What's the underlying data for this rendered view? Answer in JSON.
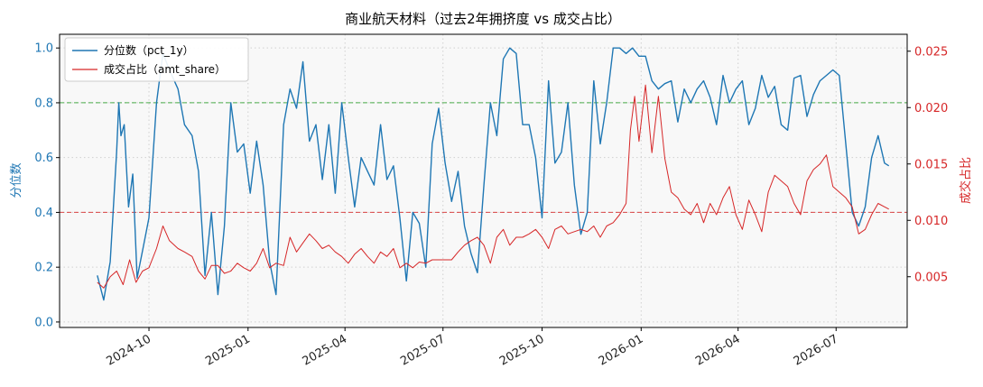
{
  "chart_data": {
    "type": "line",
    "title": "商业航天材料（过去2年拥挤度 vs 成交占比）",
    "x_ticks": [
      "2024-10",
      "2025-01",
      "2025-04",
      "2025-07",
      "2025-10",
      "2026-01",
      "2026-04",
      "2026-07"
    ],
    "y_left": {
      "label": "分位数",
      "ticks": [
        "0.0",
        "0.2",
        "0.4",
        "0.6",
        "0.8",
        "1.0"
      ],
      "range": [
        -0.02,
        1.05
      ]
    },
    "y_right": {
      "label": "成交占比",
      "ticks": [
        "0.005",
        "0.010",
        "0.015",
        "0.020",
        "0.025"
      ],
      "range": [
        0.0005,
        0.0265
      ]
    },
    "x_range": [
      "2024-07-10",
      "2026-09-05"
    ],
    "reference_lines": [
      {
        "axis": "left",
        "value": 0.8,
        "color": "#2ca02c"
      },
      {
        "axis": "left",
        "value": 0.4,
        "color": "#d62728"
      }
    ],
    "grid": true,
    "legend_position": "top-left",
    "series": [
      {
        "name": "分位数（pct_1y）",
        "axis": "left",
        "color": "#1f77b4",
        "x": [
          "2024-08-14",
          "2024-08-20",
          "2024-08-26",
          "2024-09-01",
          "2024-09-03",
          "2024-09-05",
          "2024-09-08",
          "2024-09-12",
          "2024-09-16",
          "2024-09-20",
          "2024-09-26",
          "2024-10-01",
          "2024-10-08",
          "2024-10-14",
          "2024-10-20",
          "2024-10-28",
          "2024-11-03",
          "2024-11-10",
          "2024-11-16",
          "2024-11-22",
          "2024-11-28",
          "2024-12-04",
          "2024-12-10",
          "2024-12-16",
          "2024-12-22",
          "2024-12-28",
          "2025-01-03",
          "2025-01-09",
          "2025-01-15",
          "2025-01-21",
          "2025-01-27",
          "2025-02-03",
          "2025-02-09",
          "2025-02-15",
          "2025-02-21",
          "2025-02-27",
          "2025-03-05",
          "2025-03-11",
          "2025-03-17",
          "2025-03-23",
          "2025-03-29",
          "2025-04-04",
          "2025-04-10",
          "2025-04-16",
          "2025-04-22",
          "2025-04-28",
          "2025-05-04",
          "2025-05-10",
          "2025-05-16",
          "2025-05-22",
          "2025-05-28",
          "2025-06-03",
          "2025-06-09",
          "2025-06-15",
          "2025-06-21",
          "2025-06-27",
          "2025-07-03",
          "2025-07-09",
          "2025-07-15",
          "2025-07-21",
          "2025-07-27",
          "2025-08-02",
          "2025-08-08",
          "2025-08-14",
          "2025-08-20",
          "2025-08-26",
          "2025-09-01",
          "2025-09-07",
          "2025-09-13",
          "2025-09-19",
          "2025-09-25",
          "2025-10-01",
          "2025-10-07",
          "2025-10-13",
          "2025-10-19",
          "2025-10-25",
          "2025-10-31",
          "2025-11-06",
          "2025-11-12",
          "2025-11-18",
          "2025-11-24",
          "2025-11-30",
          "2025-12-06",
          "2025-12-12",
          "2025-12-18",
          "2025-12-24",
          "2025-12-30",
          "2026-01-05",
          "2026-01-11",
          "2026-01-17",
          "2026-01-23",
          "2026-01-29",
          "2026-02-04",
          "2026-02-10",
          "2026-02-16",
          "2026-02-22",
          "2026-02-28",
          "2026-03-06",
          "2026-03-12",
          "2026-03-18",
          "2026-03-24",
          "2026-03-30",
          "2026-04-05",
          "2026-04-11",
          "2026-04-17",
          "2026-04-23",
          "2026-04-29",
          "2026-05-05",
          "2026-05-11",
          "2026-05-17",
          "2026-05-23",
          "2026-05-29",
          "2026-06-04",
          "2026-06-10",
          "2026-06-16",
          "2026-06-22",
          "2026-06-28",
          "2026-07-04",
          "2026-07-10",
          "2026-07-16",
          "2026-07-22",
          "2026-07-28",
          "2026-08-03",
          "2026-08-09",
          "2026-08-15",
          "2026-08-19"
        ],
        "values": [
          0.17,
          0.08,
          0.22,
          0.62,
          0.8,
          0.68,
          0.72,
          0.42,
          0.54,
          0.16,
          0.28,
          0.38,
          0.8,
          0.98,
          0.92,
          0.85,
          0.72,
          0.68,
          0.55,
          0.17,
          0.4,
          0.1,
          0.35,
          0.8,
          0.62,
          0.65,
          0.47,
          0.66,
          0.5,
          0.22,
          0.1,
          0.72,
          0.85,
          0.78,
          0.95,
          0.66,
          0.72,
          0.52,
          0.72,
          0.47,
          0.8,
          0.6,
          0.42,
          0.6,
          0.55,
          0.5,
          0.72,
          0.52,
          0.57,
          0.38,
          0.15,
          0.4,
          0.36,
          0.2,
          0.65,
          0.78,
          0.58,
          0.44,
          0.55,
          0.35,
          0.25,
          0.18,
          0.5,
          0.8,
          0.68,
          0.96,
          1.0,
          0.98,
          0.72,
          0.72,
          0.6,
          0.38,
          0.88,
          0.58,
          0.62,
          0.8,
          0.5,
          0.32,
          0.4,
          0.88,
          0.65,
          0.8,
          1.0,
          1.0,
          0.98,
          1.0,
          0.97,
          0.97,
          0.88,
          0.85,
          0.87,
          0.88,
          0.73,
          0.85,
          0.8,
          0.85,
          0.88,
          0.82,
          0.72,
          0.9,
          0.8,
          0.85,
          0.88,
          0.72,
          0.78,
          0.9,
          0.82,
          0.86,
          0.72,
          0.7,
          0.89,
          0.9,
          0.75,
          0.83,
          0.88,
          0.9,
          0.92,
          0.9,
          0.65,
          0.4,
          0.35,
          0.42,
          0.6,
          0.68,
          0.58,
          0.57
        ],
        "display_max_segments": 0
      },
      {
        "name": "成交占比（amt_share）",
        "axis": "right",
        "color": "#d62728",
        "x": [
          "2024-08-14",
          "2024-08-20",
          "2024-08-26",
          "2024-09-01",
          "2024-09-07",
          "2024-09-13",
          "2024-09-19",
          "2024-09-25",
          "2024-10-01",
          "2024-10-08",
          "2024-10-14",
          "2024-10-20",
          "2024-10-28",
          "2024-11-03",
          "2024-11-10",
          "2024-11-16",
          "2024-11-22",
          "2024-11-28",
          "2024-12-04",
          "2024-12-10",
          "2024-12-16",
          "2024-12-22",
          "2024-12-28",
          "2025-01-03",
          "2025-01-09",
          "2025-01-15",
          "2025-01-21",
          "2025-01-27",
          "2025-02-03",
          "2025-02-09",
          "2025-02-15",
          "2025-02-21",
          "2025-02-27",
          "2025-03-05",
          "2025-03-11",
          "2025-03-17",
          "2025-03-23",
          "2025-03-29",
          "2025-04-04",
          "2025-04-10",
          "2025-04-16",
          "2025-04-22",
          "2025-04-28",
          "2025-05-04",
          "2025-05-10",
          "2025-05-16",
          "2025-05-22",
          "2025-05-28",
          "2025-06-03",
          "2025-06-09",
          "2025-06-15",
          "2025-06-21",
          "2025-06-27",
          "2025-07-03",
          "2025-07-09",
          "2025-07-15",
          "2025-07-21",
          "2025-07-27",
          "2025-08-02",
          "2025-08-08",
          "2025-08-14",
          "2025-08-20",
          "2025-08-26",
          "2025-09-01",
          "2025-09-07",
          "2025-09-13",
          "2025-09-19",
          "2025-09-25",
          "2025-10-01",
          "2025-10-07",
          "2025-10-13",
          "2025-10-19",
          "2025-10-25",
          "2025-10-31",
          "2025-11-06",
          "2025-11-12",
          "2025-11-18",
          "2025-11-24",
          "2025-11-30",
          "2025-12-06",
          "2025-12-12",
          "2025-12-18",
          "2025-12-22",
          "2025-12-26",
          "2025-12-30",
          "2026-01-05",
          "2026-01-11",
          "2026-01-17",
          "2026-01-23",
          "2026-01-29",
          "2026-02-04",
          "2026-02-10",
          "2026-02-16",
          "2026-02-22",
          "2026-02-28",
          "2026-03-06",
          "2026-03-12",
          "2026-03-18",
          "2026-03-24",
          "2026-03-30",
          "2026-04-05",
          "2026-04-11",
          "2026-04-17",
          "2026-04-23",
          "2026-04-29",
          "2026-05-05",
          "2026-05-11",
          "2026-05-17",
          "2026-05-23",
          "2026-05-29",
          "2026-06-04",
          "2026-06-10",
          "2026-06-16",
          "2026-06-22",
          "2026-06-28",
          "2026-07-04",
          "2026-07-10",
          "2026-07-16",
          "2026-07-22",
          "2026-07-28",
          "2026-08-03",
          "2026-08-09",
          "2026-08-15",
          "2026-08-19"
        ],
        "values": [
          0.0045,
          0.004,
          0.005,
          0.0055,
          0.0043,
          0.0065,
          0.0045,
          0.0055,
          0.0058,
          0.0075,
          0.0095,
          0.0082,
          0.0075,
          0.0072,
          0.0068,
          0.0055,
          0.0048,
          0.006,
          0.006,
          0.0053,
          0.0055,
          0.0062,
          0.0058,
          0.0055,
          0.0062,
          0.0075,
          0.0058,
          0.0062,
          0.006,
          0.0085,
          0.0072,
          0.008,
          0.0088,
          0.0082,
          0.0075,
          0.0078,
          0.0072,
          0.0068,
          0.0062,
          0.007,
          0.0075,
          0.0068,
          0.0062,
          0.0072,
          0.0068,
          0.0075,
          0.0058,
          0.0062,
          0.0058,
          0.0063,
          0.0062,
          0.0065,
          0.0065,
          0.0065,
          0.0065,
          0.0072,
          0.0078,
          0.0082,
          0.0085,
          0.0078,
          0.0062,
          0.0085,
          0.0092,
          0.0078,
          0.0085,
          0.0085,
          0.0088,
          0.0092,
          0.0085,
          0.0075,
          0.0092,
          0.0095,
          0.0088,
          0.009,
          0.0092,
          0.009,
          0.0095,
          0.0085,
          0.0095,
          0.0098,
          0.0105,
          0.0115,
          0.018,
          0.021,
          0.017,
          0.022,
          0.016,
          0.021,
          0.0155,
          0.0125,
          0.012,
          0.011,
          0.0105,
          0.0115,
          0.0098,
          0.0115,
          0.0105,
          0.012,
          0.013,
          0.0105,
          0.0092,
          0.0118,
          0.0105,
          0.009,
          0.0125,
          0.014,
          0.0135,
          0.013,
          0.0115,
          0.0105,
          0.0135,
          0.0145,
          0.015,
          0.0158,
          0.013,
          0.0125,
          0.012,
          0.0112,
          0.0088,
          0.0092,
          0.0105,
          0.0115,
          0.0112,
          0.011
        ],
        "display_max_segments": 0
      }
    ]
  }
}
